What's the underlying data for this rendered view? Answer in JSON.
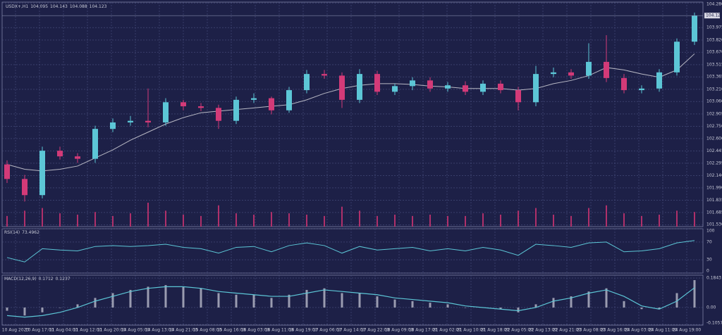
{
  "chart_data": [
    {
      "type": "candlestick",
      "symbol": "USDX+,H1",
      "ohlc": [
        104.095,
        104.143,
        104.088,
        104.123
      ],
      "last_price": 104.123,
      "up_color": "#5cc6d6",
      "down_color": "#d33a78",
      "ma_color": "#b8b8c4",
      "volume_color": "#b0306a",
      "xlim": [
        -0.2,
        39.4
      ],
      "xticks": [
        {
          "value": 0.48,
          "label": "10 Aug 2023"
        },
        {
          "value": 1.84,
          "label": "10 Aug 17:00"
        },
        {
          "value": 3.2,
          "label": "11 Aug 04:00"
        },
        {
          "value": 4.56,
          "label": "11 Aug 12:00"
        },
        {
          "value": 5.92,
          "label": "11 Aug 20:00"
        },
        {
          "value": 7.28,
          "label": "14 Aug 05:00"
        },
        {
          "value": 8.64,
          "label": "14 Aug 13:00"
        },
        {
          "value": 10.0,
          "label": "14 Aug 21:00"
        },
        {
          "value": 11.36,
          "label": "15 Aug 08:00"
        },
        {
          "value": 12.72,
          "label": "15 Aug 16:00"
        },
        {
          "value": 14.08,
          "label": "16 Aug 03:00"
        },
        {
          "value": 15.44,
          "label": "16 Aug 11:00"
        },
        {
          "value": 16.8,
          "label": "16 Aug 19:00"
        },
        {
          "value": 18.16,
          "label": "17 Aug 06:00"
        },
        {
          "value": 19.52,
          "label": "17 Aug 14:00"
        },
        {
          "value": 20.88,
          "label": "17 Aug 22:00"
        },
        {
          "value": 22.24,
          "label": "18 Aug 09:00"
        },
        {
          "value": 23.6,
          "label": "18 Aug 17:00"
        },
        {
          "value": 24.96,
          "label": "21 Aug 02:00"
        },
        {
          "value": 26.32,
          "label": "21 Aug 10:00"
        },
        {
          "value": 27.68,
          "label": "21 Aug 18:00"
        },
        {
          "value": 29.04,
          "label": "22 Aug 05:00"
        },
        {
          "value": 30.4,
          "label": "22 Aug 13:00"
        },
        {
          "value": 31.76,
          "label": "22 Aug 21:00"
        },
        {
          "value": 33.12,
          "label": "23 Aug 08:00"
        },
        {
          "value": 34.48,
          "label": "23 Aug 16:00"
        },
        {
          "value": 35.84,
          "label": "24 Aug 03:00"
        },
        {
          "value": 37.2,
          "label": "24 Aug 11:00"
        },
        {
          "value": 38.56,
          "label": "24 Aug 19:00"
        }
      ],
      "ylim": [
        101.51,
        104.29
      ],
      "yticks": [
        {
          "value": 104.28,
          "label": "104.280"
        },
        103.975,
        {
          "value": 103.82,
          "label": "103.820"
        },
        {
          "value": 103.67,
          "label": "103.670"
        },
        103.515,
        103.365,
        {
          "value": 103.21,
          "label": "103.210"
        },
        {
          "value": 103.06,
          "label": "103.060"
        },
        102.905,
        {
          "value": 102.75,
          "label": "102.750"
        },
        {
          "value": 102.6,
          "label": "102.600"
        },
        102.445,
        102.295,
        {
          "value": 102.14,
          "label": "102.140"
        },
        {
          "value": 101.99,
          "label": "101.990"
        },
        101.835,
        101.685,
        {
          "value": 101.53,
          "label": "101.530"
        }
      ],
      "open": [
        102.28,
        102.1,
        101.9,
        102.45,
        102.38,
        102.35,
        102.72,
        102.8,
        102.82,
        102.8,
        103.05,
        103.0,
        102.98,
        102.82,
        103.08,
        103.1,
        102.95,
        103.2,
        103.4,
        103.38,
        103.08,
        103.4,
        103.18,
        103.25,
        103.32,
        103.22,
        103.26,
        103.18,
        103.28,
        103.2,
        103.05,
        103.4,
        103.42,
        103.38,
        103.55,
        103.35,
        103.2,
        103.22,
        103.42,
        103.8
      ],
      "high": [
        102.33,
        102.15,
        102.5,
        102.5,
        102.42,
        102.76,
        102.85,
        102.88,
        103.22,
        103.1,
        103.08,
        103.04,
        103.02,
        103.12,
        103.16,
        103.12,
        103.24,
        103.45,
        103.45,
        103.42,
        103.46,
        103.44,
        103.28,
        103.36,
        103.36,
        103.3,
        103.31,
        103.32,
        103.32,
        103.24,
        103.5,
        103.48,
        103.46,
        103.78,
        103.88,
        103.4,
        103.26,
        103.46,
        103.84,
        104.16
      ],
      "low": [
        102.05,
        101.82,
        101.86,
        102.34,
        102.3,
        102.3,
        102.68,
        102.76,
        102.74,
        102.76,
        102.95,
        102.94,
        102.72,
        102.78,
        103.04,
        102.9,
        102.92,
        103.16,
        103.34,
        102.98,
        103.04,
        103.14,
        103.14,
        103.2,
        103.18,
        103.18,
        103.14,
        103.14,
        103.16,
        102.95,
        103.0,
        103.36,
        103.34,
        103.34,
        103.3,
        103.16,
        103.16,
        103.18,
        103.38,
        103.76
      ],
      "close": [
        102.1,
        101.9,
        102.45,
        102.38,
        102.35,
        102.72,
        102.8,
        102.82,
        102.8,
        103.05,
        103.0,
        102.98,
        102.82,
        103.08,
        103.1,
        102.95,
        103.2,
        103.4,
        103.38,
        103.08,
        103.4,
        103.18,
        103.25,
        103.32,
        103.22,
        103.26,
        103.18,
        103.28,
        103.2,
        103.05,
        103.4,
        103.42,
        103.38,
        103.55,
        103.35,
        103.2,
        103.22,
        103.42,
        103.8,
        104.123
      ],
      "ma": [
        102.28,
        102.22,
        102.2,
        102.22,
        102.26,
        102.36,
        102.46,
        102.58,
        102.68,
        102.78,
        102.86,
        102.92,
        102.94,
        102.96,
        102.98,
        103.0,
        103.02,
        103.08,
        103.16,
        103.22,
        103.26,
        103.28,
        103.28,
        103.27,
        103.25,
        103.24,
        103.22,
        103.22,
        103.22,
        103.2,
        103.22,
        103.28,
        103.32,
        103.38,
        103.48,
        103.45,
        103.4,
        103.36,
        103.45,
        103.65
      ],
      "volume": [
        40,
        60,
        70,
        50,
        45,
        55,
        40,
        50,
        90,
        60,
        45,
        40,
        80,
        50,
        45,
        55,
        50,
        45,
        40,
        75,
        60,
        40,
        45,
        40,
        45,
        40,
        40,
        50,
        45,
        60,
        70,
        45,
        40,
        70,
        80,
        50,
        40,
        45,
        60,
        55
      ]
    },
    {
      "type": "line",
      "title": "RSI(14)",
      "last_value": 73.4962,
      "color": "#5cc6d6",
      "ylim": [
        0,
        100
      ],
      "yticks": [
        100,
        70,
        30,
        0
      ],
      "values": [
        35,
        25,
        55,
        52,
        50,
        60,
        62,
        60,
        62,
        65,
        58,
        55,
        45,
        58,
        60,
        48,
        62,
        68,
        62,
        45,
        60,
        52,
        55,
        58,
        50,
        55,
        50,
        58,
        52,
        40,
        65,
        62,
        58,
        68,
        70,
        48,
        50,
        55,
        68,
        73.4962
      ]
    },
    {
      "type": "macd",
      "title": "MACD(12,26,9)",
      "last_values": [
        0.1712,
        0.1237
      ],
      "color": "#9a9cb0",
      "signal_color": "#5cc6d6",
      "ylim": [
        -0.11,
        0.202
      ],
      "yticks": [
        0.1843,
        {
          "value": 0,
          "label": "0.00"
        },
        -0.1057
      ],
      "values": [
        -0.02,
        -0.05,
        -0.03,
        0.0,
        0.02,
        0.06,
        0.09,
        0.11,
        0.13,
        0.14,
        0.13,
        0.12,
        0.09,
        0.08,
        0.08,
        0.06,
        0.08,
        0.11,
        0.12,
        0.09,
        0.09,
        0.07,
        0.05,
        0.04,
        0.03,
        0.02,
        0.0,
        0.0,
        -0.01,
        -0.03,
        0.02,
        0.06,
        0.07,
        0.1,
        0.12,
        0.04,
        -0.01,
        -0.01,
        0.09,
        0.1712
      ],
      "signal": [
        -0.05,
        -0.06,
        -0.05,
        -0.03,
        0.0,
        0.04,
        0.07,
        0.1,
        0.12,
        0.13,
        0.13,
        0.12,
        0.1,
        0.09,
        0.08,
        0.07,
        0.07,
        0.09,
        0.11,
        0.1,
        0.09,
        0.08,
        0.06,
        0.05,
        0.04,
        0.03,
        0.01,
        0.0,
        -0.01,
        -0.02,
        0.0,
        0.04,
        0.06,
        0.09,
        0.11,
        0.07,
        0.01,
        -0.01,
        0.04,
        0.1237
      ]
    }
  ]
}
